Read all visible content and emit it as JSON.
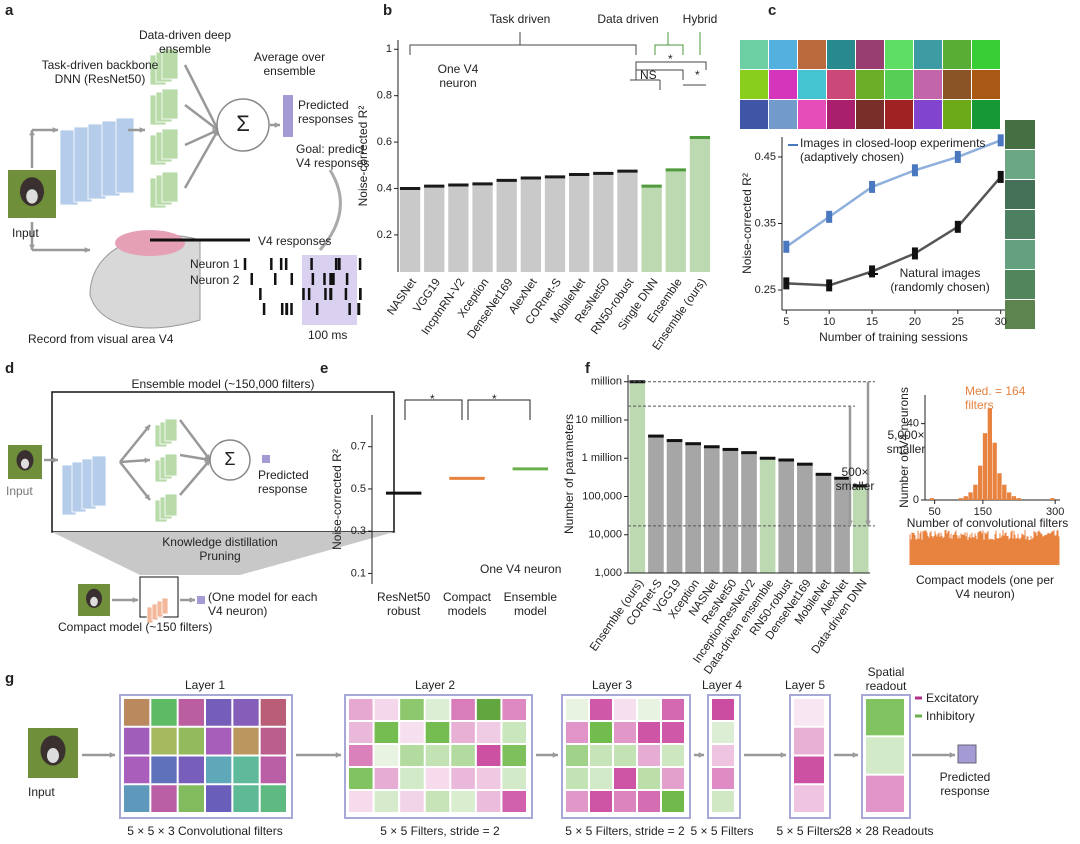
{
  "panel_labels": [
    "a",
    "b",
    "c",
    "d",
    "e",
    "f",
    "g"
  ],
  "panel_a": {
    "backbone": "Task-driven backbone DNN (ResNet50)",
    "ensemble": "Data-driven deep ensemble",
    "average": "Average over ensemble",
    "predicted": "Predicted responses",
    "goal": "Goal: predict V4 responses",
    "input": "Input",
    "v4": "V4 responses",
    "neuron1": "Neuron 1",
    "neuron2": "Neuron 2",
    "scale": "100 ms",
    "record": "Record from visual area V4"
  },
  "panel_d": {
    "ensemble": "Ensemble model (~150,000 filters)",
    "input": "Input",
    "predicted": "Predicted response",
    "distill": "Knowledge distillation",
    "pruning": "Pruning",
    "compact": "Compact model (~150 filters)",
    "one_model": "(One model for each V4 neuron)"
  },
  "panel_g": {
    "layers": [
      "Layer 1",
      "Layer 2",
      "Layer 3",
      "Layer 4",
      "Layer 5"
    ],
    "readout": "Spatial readout",
    "legend": [
      "Excitatory",
      "Inhibitory"
    ],
    "input": "Input",
    "predicted": "Predicted response",
    "captions": [
      "5 × 5 × 3 Convolutional filters",
      "5 × 5 Filters, stride = 2",
      "5 × 5 Filters, stride = 2",
      "5 × 5 Filters",
      "5 × 5 Filters",
      "28 × 28 Readouts"
    ]
  },
  "chart_data": [
    {
      "type": "bar",
      "ylabel": "Noise-corrected R²",
      "categories": [
        "NASNet",
        "VGG19",
        "IncptnRN-V2",
        "Xception",
        "DenseNet169",
        "AlexNet",
        "CORnet-S",
        "MobileNet",
        "ResNet50",
        "RN50-robust",
        "Single DNN",
        "Ensemble",
        "Ensemble (ours)"
      ],
      "values": [
        0.4,
        0.41,
        0.415,
        0.42,
        0.435,
        0.445,
        0.45,
        0.46,
        0.465,
        0.475,
        0.41,
        0.48,
        0.62
      ],
      "colors": [
        "#1a1a1a",
        "#1a1a1a",
        "#1a1a1a",
        "#1a1a1a",
        "#1a1a1a",
        "#1a1a1a",
        "#1a1a1a",
        "#1a1a1a",
        "#1a1a1a",
        "#1a1a1a",
        "#4e9a3c",
        "#4e9a3c",
        "#4e9a3c"
      ],
      "bar_colors": [
        "#c9c9c9",
        "#c9c9c9",
        "#c9c9c9",
        "#c9c9c9",
        "#c9c9c9",
        "#c9c9c9",
        "#c9c9c9",
        "#c9c9c9",
        "#c9c9c9",
        "#c9c9c9",
        "#bcd9b2",
        "#bcd9b2",
        "#bcd9b2"
      ],
      "ylim": [
        0.04,
        1.04
      ],
      "yticks": [
        0.2,
        0.4,
        0.6,
        0.8,
        1
      ],
      "groups": [
        "Task driven",
        "Data driven",
        "Hybrid"
      ],
      "annotations": [
        "One V4 neuron",
        "NS",
        "*",
        "*"
      ]
    },
    {
      "type": "line",
      "ylabel": "Noise-corrected R²",
      "xlabel": "Number of training sessions",
      "x": [
        5,
        10,
        15,
        20,
        25,
        30
      ],
      "series": [
        {
          "name": "Images in closed-loop experiments (adaptively chosen)",
          "color": "#8fb0dc",
          "values": [
            0.315,
            0.36,
            0.405,
            0.43,
            0.45,
            0.475
          ]
        },
        {
          "name": "Natural images (randomly chosen)",
          "color": "#555555",
          "values": [
            0.26,
            0.257,
            0.278,
            0.305,
            0.345,
            0.42
          ]
        }
      ],
      "xlim": [
        4.5,
        30.5
      ],
      "xticks": [
        5,
        10,
        15,
        20,
        25,
        30
      ],
      "ylim": [
        0.22,
        0.48
      ],
      "yticks": [
        0.25,
        0.35,
        0.45
      ]
    },
    {
      "type": "bar",
      "ylabel": "Noise-corrected R²",
      "categories": [
        "ResNet50 robust",
        "Compact models",
        "Ensemble model"
      ],
      "values": [
        0.48,
        0.55,
        0.595
      ],
      "colors": [
        "#111111",
        "#e8823f",
        "#6ab04c"
      ],
      "ylim": [
        0.05,
        0.85
      ],
      "yticks": [
        0.1,
        0.3,
        0.5,
        0.7
      ],
      "annotations": [
        "*",
        "*",
        "One V4 neuron"
      ]
    },
    {
      "type": "bar",
      "ylabel": "Number of parameters",
      "log_scale": true,
      "categories": [
        "Ensemble (ours)",
        "CORnet-S",
        "VGG19",
        "Xception",
        "NASNet",
        "ResNet50",
        "InceptionResNetV2",
        "Data-driven ensemble",
        "RN50-robust",
        "DenseNet169",
        "MobileNet",
        "AlexNet",
        "Data-driven DNN"
      ],
      "values": [
        100000000,
        3800000,
        2900000,
        2400000,
        2000000,
        1700000,
        1400000,
        1000000,
        900000,
        700000,
        380000,
        300000,
        190000
      ],
      "bar_colors": [
        "#bcd9b2",
        "#a6a6a6",
        "#a6a6a6",
        "#a6a6a6",
        "#a6a6a6",
        "#a6a6a6",
        "#a6a6a6",
        "#bcd9b2",
        "#a6a6a6",
        "#a6a6a6",
        "#a6a6a6",
        "#a6a6a6",
        "#bcd9b2"
      ],
      "ylim": [
        1000,
        150000000
      ],
      "yticks": [
        {
          "value": 1000,
          "label": "1,000"
        },
        {
          "value": 10000,
          "label": "10,000"
        },
        {
          "value": 100000,
          "label": "100,000"
        },
        {
          "value": 1000000,
          "label": "1 million"
        },
        {
          "value": 10000000,
          "label": "10 million"
        },
        {
          "value": 100000000,
          "label": "million"
        }
      ],
      "annotations": [
        "5,000× smaller",
        "500× smaller"
      ]
    },
    {
      "type": "histogram",
      "ylabel": "Number of V4 neurons",
      "xlabel": "Number of convolutional filters",
      "color": "#e8823f",
      "bins": [
        40,
        50,
        60,
        70,
        80,
        90,
        100,
        110,
        120,
        130,
        140,
        150,
        160,
        170,
        180,
        190,
        200,
        210,
        220,
        230,
        240,
        250,
        260,
        270,
        280,
        290,
        300
      ],
      "counts": [
        1,
        0,
        0,
        0,
        0,
        0,
        1,
        2,
        4,
        8,
        18,
        35,
        48,
        30,
        14,
        8,
        4,
        2,
        1,
        0,
        0,
        0,
        0,
        0,
        0,
        1
      ],
      "xlim": [
        30,
        310
      ],
      "xticks": [
        50,
        150,
        300
      ],
      "ylim": [
        0,
        55
      ],
      "yticks": [
        0,
        40
      ],
      "annotations": [
        "Med. = 164 filters",
        "Compact models (one per V4 neuron)"
      ]
    }
  ]
}
